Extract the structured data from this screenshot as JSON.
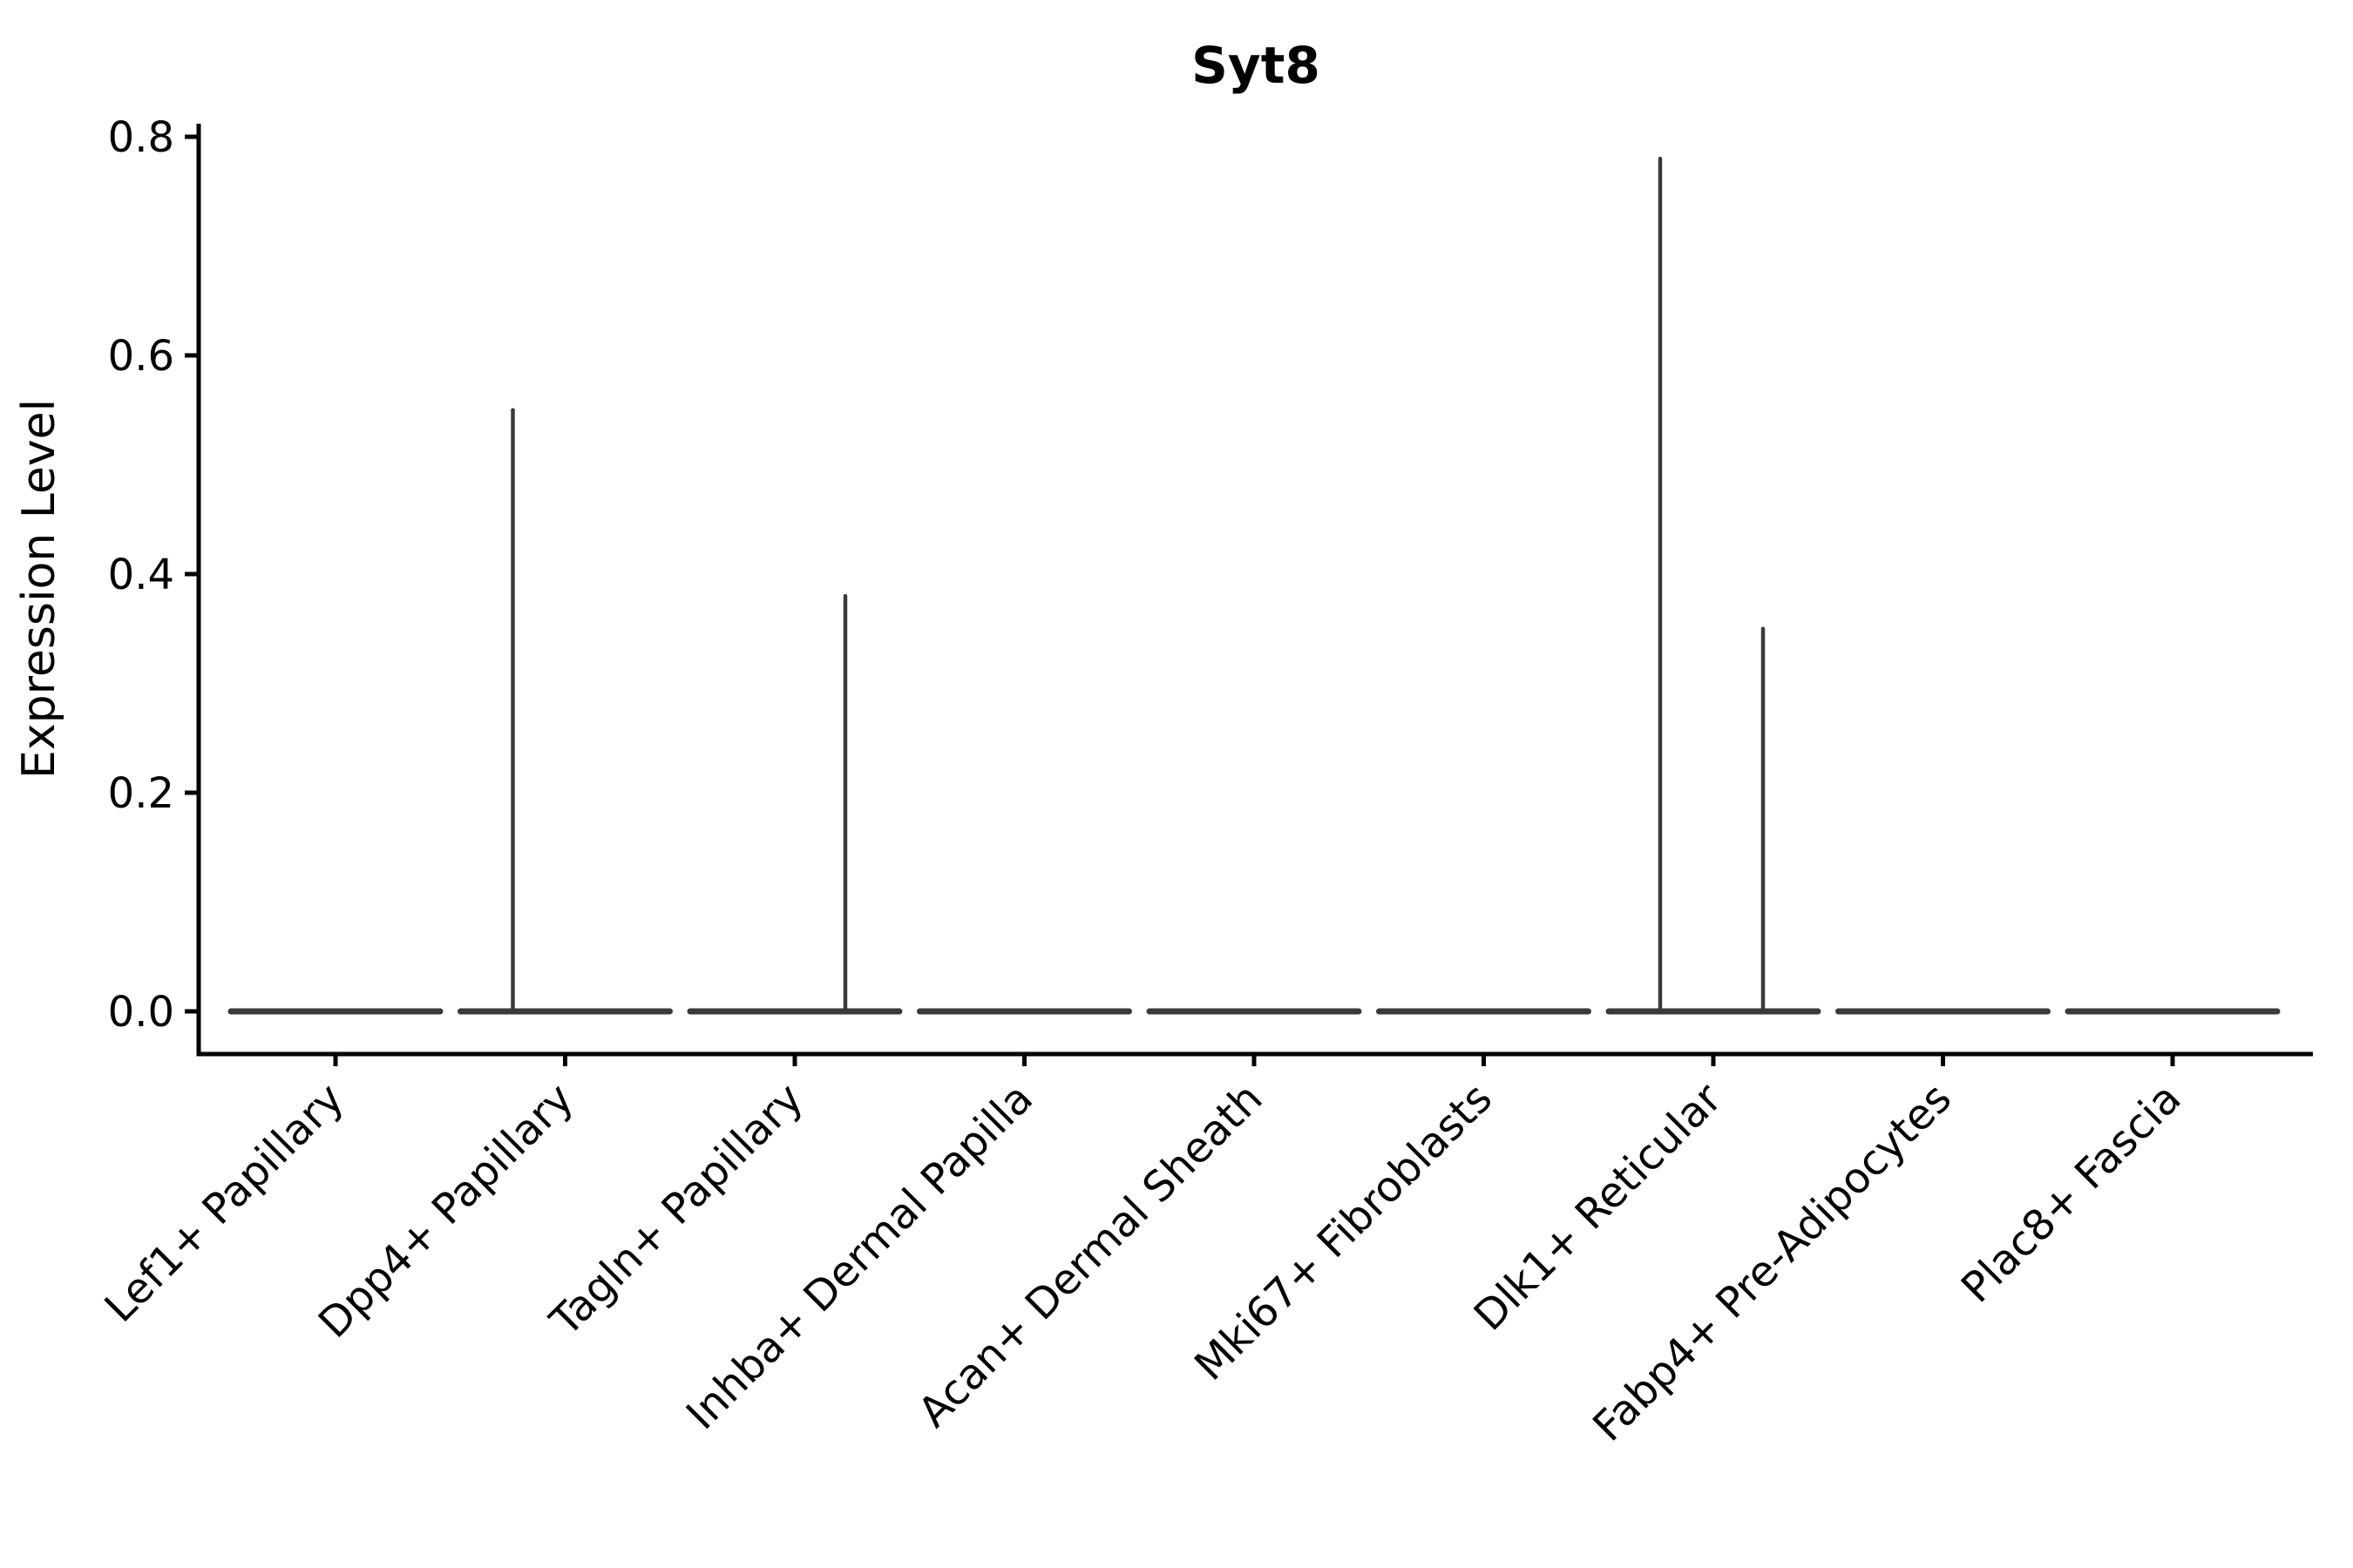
{
  "chart_data": {
    "type": "violin",
    "title": "Syt8",
    "xlabel": "",
    "ylabel": "Expression Level",
    "ylim": [
      0,
      0.82
    ],
    "yticks": [
      0.0,
      0.2,
      0.4,
      0.6,
      0.8
    ],
    "ytick_labels": [
      "0.0",
      "0.2",
      "0.4",
      "0.6",
      "0.8"
    ],
    "grid": false,
    "legend": "none",
    "x_tick_label_rotation_deg": 45,
    "categories": [
      "Lef1+ Papillary",
      "Dpp4+ Papillary",
      "Tagln+ Papillary",
      "Inhba+ Dermal Papilla",
      "Acan+ Dermal Sheath",
      "Mki67+ Fibroblasts",
      "Dlk1+ Reticular",
      "Fabp4+ Pre-Adipocytes",
      "Plac8+ Fascia"
    ],
    "violins": [
      {
        "category": "Lef1+ Papillary",
        "baseline_value": 0.0,
        "max_expression": 0.0,
        "spikes": []
      },
      {
        "category": "Dpp4+ Papillary",
        "baseline_value": 0.0,
        "max_expression": 0.55,
        "spikes": [
          {
            "value": 0.55,
            "x_offset": -60
          }
        ]
      },
      {
        "category": "Tagln+ Papillary",
        "baseline_value": 0.0,
        "max_expression": 0.38,
        "spikes": [
          {
            "value": 0.38,
            "x_offset": 58
          }
        ]
      },
      {
        "category": "Inhba+ Dermal Papilla",
        "baseline_value": 0.0,
        "max_expression": 0.0,
        "spikes": []
      },
      {
        "category": "Acan+ Dermal Sheath",
        "baseline_value": 0.0,
        "max_expression": 0.0,
        "spikes": []
      },
      {
        "category": "Mki67+ Fibroblasts",
        "baseline_value": 0.0,
        "max_expression": 0.0,
        "spikes": []
      },
      {
        "category": "Dlk1+ Reticular",
        "baseline_value": 0.0,
        "max_expression": 0.78,
        "spikes": [
          {
            "value": 0.78,
            "x_offset": -61
          },
          {
            "value": 0.35,
            "x_offset": 57
          }
        ]
      },
      {
        "category": "Fabp4+ Pre-Adipocytes",
        "baseline_value": 0.0,
        "max_expression": 0.0,
        "spikes": []
      },
      {
        "category": "Plac8+ Fascia",
        "baseline_value": 0.0,
        "max_expression": 0.0,
        "spikes": []
      }
    ],
    "colors": {
      "violin_line": "#3a3a3a",
      "axis": "#000000",
      "text": "#000000",
      "background": "#ffffff"
    }
  }
}
